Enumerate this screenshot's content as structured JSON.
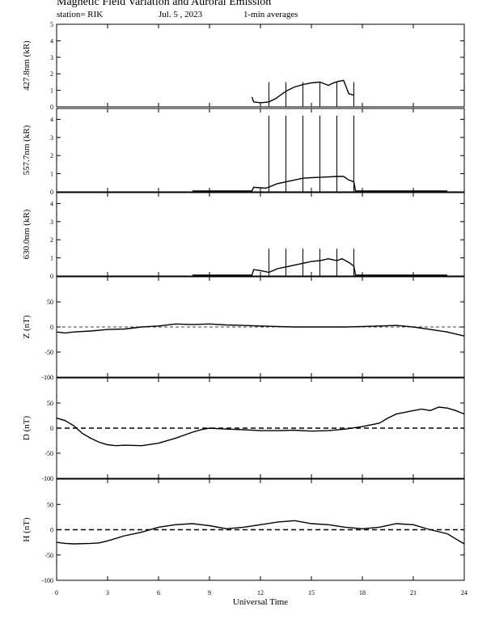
{
  "header": {
    "title": "Magnetic Field Variation and Auroral Emission",
    "station": "station= RIK",
    "date": "Jul.  5  , 2023",
    "averaging": "1-min averages"
  },
  "chart_data": [
    {
      "type": "line",
      "ylabel": "427.8nm (kR)",
      "xlim": [
        0,
        24
      ],
      "ylim": [
        0,
        5
      ],
      "yticks": [
        0,
        1,
        2,
        3,
        4,
        5
      ],
      "x": [
        11.5,
        11.6,
        12.0,
        12.5,
        12.9,
        13.3,
        13.6,
        14.0,
        14.5,
        15.0,
        15.5,
        16.0,
        16.3,
        16.6,
        16.9,
        17.2,
        17.5
      ],
      "y": [
        0.6,
        0.3,
        0.25,
        0.3,
        0.5,
        0.8,
        1.0,
        1.2,
        1.35,
        1.45,
        1.5,
        1.3,
        1.45,
        1.55,
        1.6,
        0.8,
        0.7
      ],
      "spikes_x": [
        12.5,
        13.5,
        14.5,
        15.5,
        16.5,
        17.5
      ],
      "spikes_top": 1.5
    },
    {
      "type": "line",
      "ylabel": "557.7nm (kR)",
      "xlim": [
        0,
        24
      ],
      "ylim": [
        0,
        4.6
      ],
      "yticks": [
        0,
        1,
        2,
        3,
        4
      ],
      "x": [
        8.0,
        11.5,
        11.6,
        12.3,
        12.6,
        13.0,
        13.5,
        14.0,
        14.5,
        15.0,
        15.5,
        16.0,
        16.5,
        16.9,
        17.2,
        17.5,
        17.6,
        23.0
      ],
      "y": [
        0.05,
        0.05,
        0.25,
        0.2,
        0.3,
        0.45,
        0.55,
        0.65,
        0.75,
        0.78,
        0.8,
        0.82,
        0.85,
        0.85,
        0.65,
        0.55,
        0.05,
        0.05
      ],
      "spikes_x": [
        12.5,
        13.5,
        14.5,
        15.5,
        16.5,
        17.5
      ],
      "spikes_top": 4.2
    },
    {
      "type": "line",
      "ylabel": "630.0nm (kR)",
      "xlim": [
        0,
        24
      ],
      "ylim": [
        0,
        4.6
      ],
      "yticks": [
        0,
        1,
        2,
        3,
        4
      ],
      "x": [
        8.0,
        11.5,
        11.6,
        12.0,
        12.5,
        13.0,
        13.5,
        14.0,
        14.5,
        15.0,
        15.5,
        16.0,
        16.5,
        16.8,
        17.2,
        17.5,
        17.6,
        23.0
      ],
      "y": [
        0.05,
        0.05,
        0.35,
        0.3,
        0.2,
        0.4,
        0.5,
        0.6,
        0.7,
        0.8,
        0.85,
        0.95,
        0.85,
        0.95,
        0.75,
        0.55,
        0.05,
        0.05
      ],
      "spikes_x": [
        12.5,
        13.5,
        14.5,
        15.5,
        16.5,
        17.5
      ],
      "spikes_top": 1.5
    },
    {
      "type": "line",
      "ylabel": "Z (nT)",
      "xlim": [
        0,
        24
      ],
      "ylim": [
        -100,
        100
      ],
      "yticks": [
        -100,
        -50,
        0,
        50
      ],
      "zero_line": "thin-dashed",
      "x": [
        0,
        0.5,
        1,
        2,
        3,
        4,
        5,
        6,
        7,
        8,
        9,
        10,
        11,
        12,
        13,
        14,
        15,
        16,
        17,
        18,
        19,
        20,
        21,
        22,
        23,
        24
      ],
      "y": [
        -10,
        -12,
        -10,
        -8,
        -5,
        -4,
        0,
        2,
        6,
        5,
        6,
        4,
        3,
        2,
        1,
        0,
        0,
        0,
        0,
        1,
        2,
        3,
        0,
        -5,
        -10,
        -18
      ]
    },
    {
      "type": "line",
      "ylabel": "D (nT)",
      "xlim": [
        0,
        24
      ],
      "ylim": [
        -100,
        100
      ],
      "yticks": [
        -100,
        -50,
        0,
        50
      ],
      "zero_line": "thick-dashed",
      "x": [
        0,
        0.5,
        1,
        1.5,
        2,
        2.5,
        3,
        3.5,
        4,
        5,
        6,
        7,
        8,
        8.5,
        9,
        10,
        11,
        12,
        13,
        14,
        15,
        16,
        17,
        18,
        19,
        19.5,
        20,
        21,
        21.5,
        22,
        22.5,
        23,
        23.5,
        24
      ],
      "y": [
        20,
        15,
        5,
        -10,
        -20,
        -28,
        -33,
        -35,
        -34,
        -35,
        -30,
        -20,
        -8,
        -3,
        0,
        -2,
        -3,
        -5,
        -5,
        -4,
        -6,
        -5,
        -2,
        3,
        10,
        20,
        28,
        35,
        38,
        35,
        42,
        40,
        35,
        28
      ]
    },
    {
      "type": "line",
      "ylabel": "H (nT)",
      "xlim": [
        0,
        24
      ],
      "ylim": [
        -100,
        100
      ],
      "yticks": [
        -100,
        -50,
        0,
        50
      ],
      "zero_line": "thick-dashed",
      "x": [
        0,
        0.5,
        1,
        2,
        2.5,
        3,
        4,
        5,
        6,
        7,
        8,
        9,
        10,
        11,
        12,
        13,
        14,
        15,
        16,
        17,
        18,
        19,
        20,
        21,
        22,
        23,
        23.5,
        24
      ],
      "y": [
        -25,
        -27,
        -28,
        -27,
        -26,
        -22,
        -12,
        -5,
        5,
        10,
        12,
        8,
        2,
        5,
        10,
        15,
        18,
        12,
        10,
        5,
        2,
        5,
        12,
        10,
        0,
        -8,
        -18,
        -28
      ]
    }
  ],
  "xaxis": {
    "label": "Universal Time",
    "ticks": [
      0,
      3,
      6,
      9,
      12,
      15,
      18,
      21,
      24
    ]
  }
}
